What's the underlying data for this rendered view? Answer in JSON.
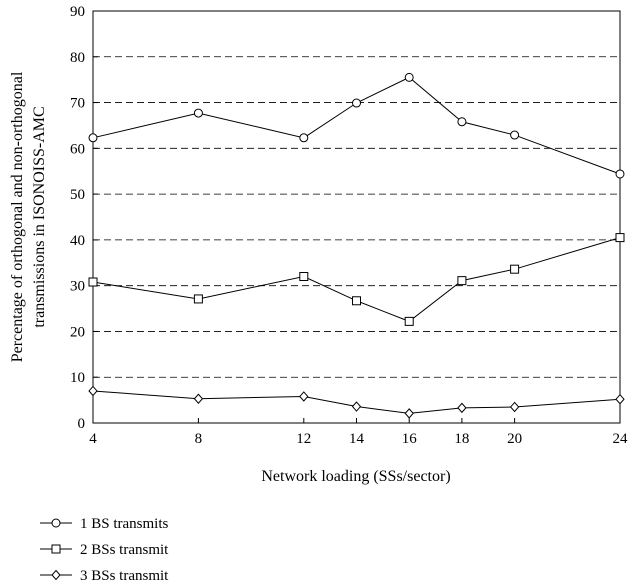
{
  "chart_data": {
    "type": "line",
    "xlabel": "Network loading (SSs/sector)",
    "ylabel_lines": [
      "Percentage of orthogonal and non-orthogonal",
      "transmissions in ISONOISS-AMC"
    ],
    "x": [
      4,
      8,
      12,
      14,
      16,
      18,
      20,
      24
    ],
    "xlim": [
      4,
      24
    ],
    "ylim": [
      0,
      90
    ],
    "yticks": [
      0,
      10,
      20,
      30,
      40,
      50,
      60,
      70,
      80,
      90
    ],
    "grid": "horizontal-dashed",
    "legend_position": "bottom-left-below-plot",
    "series": [
      {
        "name": "1 BS transmits",
        "marker": "circle",
        "values": [
          62.3,
          67.7,
          62.3,
          69.9,
          75.5,
          65.8,
          62.9,
          54.4
        ]
      },
      {
        "name": "2 BSs transmit",
        "marker": "square",
        "values": [
          30.8,
          27.1,
          32.0,
          26.7,
          22.2,
          31.1,
          33.6,
          40.5
        ]
      },
      {
        "name": "3 BSs transmit",
        "marker": "diamond",
        "values": [
          7.0,
          5.3,
          5.8,
          3.6,
          2.1,
          3.3,
          3.5,
          5.2
        ]
      }
    ]
  }
}
